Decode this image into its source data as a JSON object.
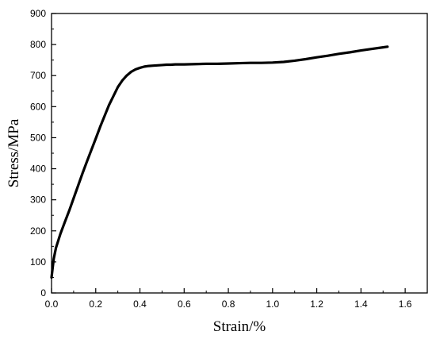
{
  "chart_data": {
    "type": "line",
    "title": "",
    "xlabel": "Strain/%",
    "ylabel": "Stress/MPa",
    "xlim": [
      0.0,
      1.7
    ],
    "ylim": [
      0,
      900
    ],
    "x_ticks": [
      "0.0",
      "0.2",
      "0.4",
      "0.6",
      "0.8",
      "1.0",
      "1.2",
      "1.4",
      "1.6"
    ],
    "y_ticks": [
      "0",
      "100",
      "200",
      "300",
      "400",
      "500",
      "600",
      "700",
      "800",
      "900"
    ],
    "grid": false,
    "legend": "none",
    "line_color": "#000000",
    "series": [
      {
        "x": [
          0.0,
          0.01,
          0.02,
          0.04,
          0.06,
          0.08,
          0.1,
          0.12,
          0.14,
          0.16,
          0.18,
          0.2,
          0.22,
          0.24,
          0.26,
          0.28,
          0.3,
          0.32,
          0.34,
          0.36,
          0.38,
          0.4,
          0.42,
          0.44,
          0.46,
          0.48,
          0.5,
          0.52,
          0.54,
          0.56,
          0.58,
          0.6,
          0.65,
          0.7,
          0.75,
          0.8,
          0.85,
          0.9,
          0.95,
          1.0,
          1.05,
          1.1,
          1.15,
          1.2,
          1.25,
          1.3,
          1.35,
          1.4,
          1.45,
          1.5,
          1.52
        ],
        "values": [
          50,
          110,
          145,
          190,
          228,
          265,
          305,
          345,
          385,
          423,
          460,
          497,
          535,
          570,
          605,
          634,
          663,
          684,
          700,
          712,
          720,
          725,
          729,
          731,
          732,
          733,
          734,
          735,
          735,
          736,
          736,
          736,
          737,
          738,
          738,
          739,
          740,
          741,
          741,
          742,
          744,
          748,
          753,
          759,
          764,
          770,
          775,
          781,
          786,
          791,
          793
        ]
      }
    ]
  }
}
